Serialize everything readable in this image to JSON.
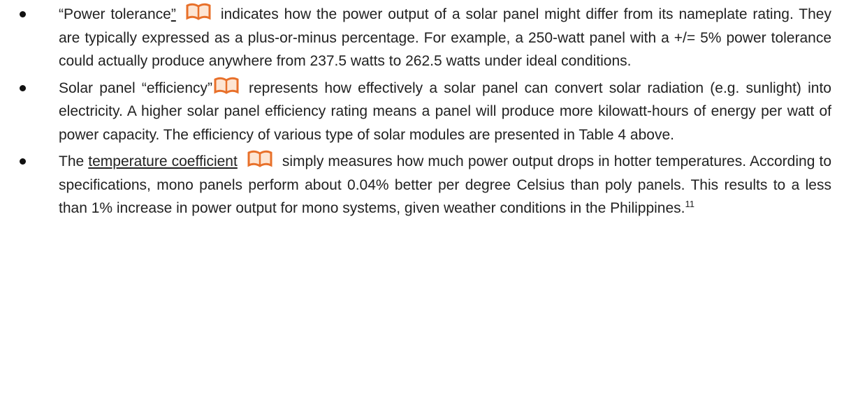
{
  "bullets": [
    {
      "lead": "“Power tolerance",
      "underlined": "”",
      "text": "indicates how the power output of a solar panel might differ from its nameplate rating. They are typically expressed as a plus-or-minus percentage. For example, a 250-watt panel with a +/= 5% power tolerance could actually produce anywhere from 237.5 watts to 262.5 watts under ideal conditions."
    },
    {
      "lead": "Solar panel “efficiency”",
      "text": "represents how effectively a solar panel can convert solar radiation (e.g. sunlight) into electricity. A higher solar panel efficiency rating means a panel will produce more kilowatt-hours of energy per watt of power capacity. The efficiency of various type of solar modules are presented in Table 4 above."
    },
    {
      "lead": "The ",
      "underlined": "temperature coefficient",
      "text": "simply measures how much power output drops in hotter temperatures. According to specifications, mono panels perform about 0.04% better per degree Celsius than poly panels. This results to a less than 1% increase in power output for mono systems, given weather conditions in the Philippines.",
      "footnote": "11"
    }
  ]
}
